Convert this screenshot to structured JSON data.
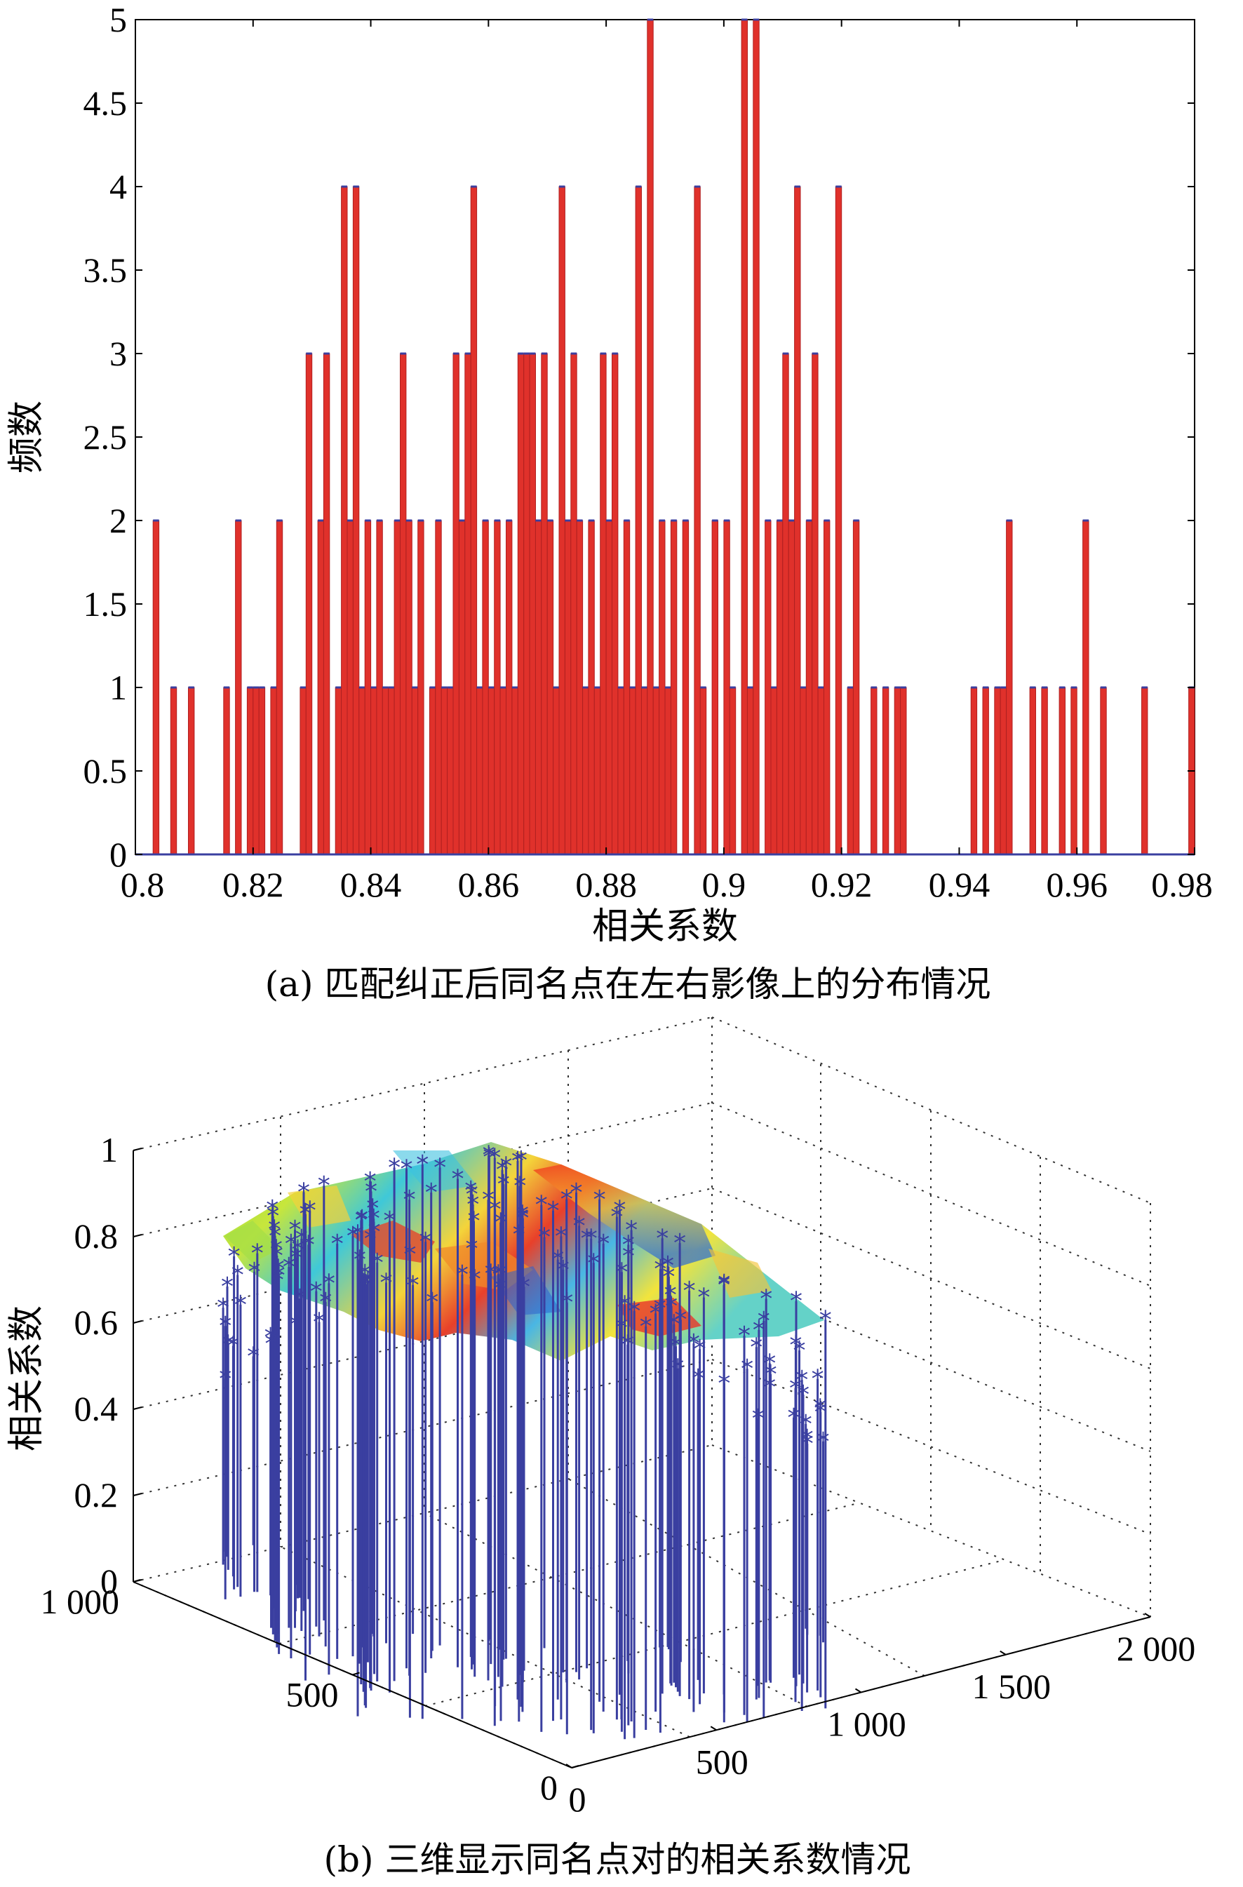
{
  "chart_data": [
    {
      "type": "bar",
      "subtitle": "(a) 匹配纠正后同名点在左右影像上的分布情况",
      "xlabel": "相关系数",
      "ylabel": "频数",
      "xlim": [
        0.8,
        0.98
      ],
      "ylim": [
        0,
        5
      ],
      "xticks": [
        "0.8",
        "0.82",
        "0.84",
        "0.86",
        "0.88",
        "0.9",
        "0.92",
        "0.94",
        "0.96",
        "0.98"
      ],
      "yticks": [
        "0",
        "0.5",
        "1",
        "1.5",
        "2",
        "2.5",
        "3",
        "3.5",
        "4",
        "4.5",
        "5"
      ],
      "bar_color": "#e0312b",
      "bars": [
        [
          0.8035,
          2
        ],
        [
          0.8065,
          1
        ],
        [
          0.8095,
          1
        ],
        [
          0.8155,
          1
        ],
        [
          0.8175,
          2
        ],
        [
          0.8195,
          1
        ],
        [
          0.8205,
          1
        ],
        [
          0.8215,
          1
        ],
        [
          0.8235,
          1
        ],
        [
          0.8245,
          2
        ],
        [
          0.8285,
          1
        ],
        [
          0.8295,
          3
        ],
        [
          0.8315,
          2
        ],
        [
          0.8325,
          3
        ],
        [
          0.8345,
          1
        ],
        [
          0.8355,
          4
        ],
        [
          0.8365,
          2
        ],
        [
          0.8375,
          4
        ],
        [
          0.8385,
          1
        ],
        [
          0.8395,
          2
        ],
        [
          0.8405,
          1
        ],
        [
          0.8415,
          2
        ],
        [
          0.8425,
          1
        ],
        [
          0.8435,
          1
        ],
        [
          0.8445,
          2
        ],
        [
          0.8455,
          3
        ],
        [
          0.8465,
          2
        ],
        [
          0.8475,
          1
        ],
        [
          0.8485,
          2
        ],
        [
          0.8505,
          1
        ],
        [
          0.8515,
          2
        ],
        [
          0.8525,
          1
        ],
        [
          0.8535,
          1
        ],
        [
          0.8545,
          3
        ],
        [
          0.8555,
          2
        ],
        [
          0.8565,
          3
        ],
        [
          0.8575,
          4
        ],
        [
          0.8585,
          1
        ],
        [
          0.8595,
          2
        ],
        [
          0.8605,
          1
        ],
        [
          0.8615,
          2
        ],
        [
          0.8625,
          1
        ],
        [
          0.8635,
          2
        ],
        [
          0.8645,
          1
        ],
        [
          0.8655,
          3
        ],
        [
          0.8665,
          3
        ],
        [
          0.8675,
          3
        ],
        [
          0.8685,
          2
        ],
        [
          0.8695,
          3
        ],
        [
          0.8705,
          2
        ],
        [
          0.8715,
          1
        ],
        [
          0.8725,
          4
        ],
        [
          0.8735,
          2
        ],
        [
          0.8745,
          3
        ],
        [
          0.8755,
          2
        ],
        [
          0.8765,
          1
        ],
        [
          0.8775,
          2
        ],
        [
          0.8785,
          1
        ],
        [
          0.8795,
          3
        ],
        [
          0.8805,
          2
        ],
        [
          0.8815,
          3
        ],
        [
          0.8825,
          1
        ],
        [
          0.8835,
          2
        ],
        [
          0.8845,
          1
        ],
        [
          0.8855,
          4
        ],
        [
          0.8865,
          1
        ],
        [
          0.8875,
          5
        ],
        [
          0.8885,
          1
        ],
        [
          0.8895,
          2
        ],
        [
          0.8905,
          1
        ],
        [
          0.8915,
          2
        ],
        [
          0.8935,
          2
        ],
        [
          0.8955,
          4
        ],
        [
          0.8965,
          1
        ],
        [
          0.8985,
          2
        ],
        [
          0.9005,
          2
        ],
        [
          0.9015,
          1
        ],
        [
          0.9035,
          5
        ],
        [
          0.9045,
          1
        ],
        [
          0.9055,
          5
        ],
        [
          0.9075,
          2
        ],
        [
          0.9085,
          1
        ],
        [
          0.9095,
          2
        ],
        [
          0.9105,
          3
        ],
        [
          0.9115,
          2
        ],
        [
          0.9125,
          4
        ],
        [
          0.9135,
          1
        ],
        [
          0.9145,
          2
        ],
        [
          0.9155,
          3
        ],
        [
          0.9165,
          1
        ],
        [
          0.9175,
          2
        ],
        [
          0.9195,
          4
        ],
        [
          0.9215,
          1
        ],
        [
          0.9225,
          2
        ],
        [
          0.9255,
          1
        ],
        [
          0.9275,
          1
        ],
        [
          0.9295,
          1
        ],
        [
          0.9305,
          1
        ],
        [
          0.9425,
          1
        ],
        [
          0.9445,
          1
        ],
        [
          0.9465,
          1
        ],
        [
          0.9475,
          1
        ],
        [
          0.9485,
          2
        ],
        [
          0.9525,
          1
        ],
        [
          0.9545,
          1
        ],
        [
          0.9575,
          1
        ],
        [
          0.9595,
          1
        ],
        [
          0.9615,
          2
        ],
        [
          0.9645,
          1
        ],
        [
          0.9715,
          1
        ],
        [
          0.9795,
          1
        ]
      ]
    },
    {
      "type": "scatter3d",
      "subtitle": "(b) 三维显示同名点对的相关系数情况",
      "zlabel": "相关系数",
      "zlim": [
        0,
        1
      ],
      "zticks": [
        "0",
        "0.2",
        "0.4",
        "0.6",
        "0.8",
        "1"
      ],
      "ylim": [
        0,
        1000
      ],
      "yticks": [
        "0",
        "500",
        "1 000"
      ],
      "xlim": [
        0,
        2000
      ],
      "xticks": [
        "0",
        "500",
        "1 000",
        "1 500",
        "2 000"
      ],
      "stem_color": "#3a3fa0",
      "marker": "*",
      "surface_colormap": "jet"
    }
  ]
}
